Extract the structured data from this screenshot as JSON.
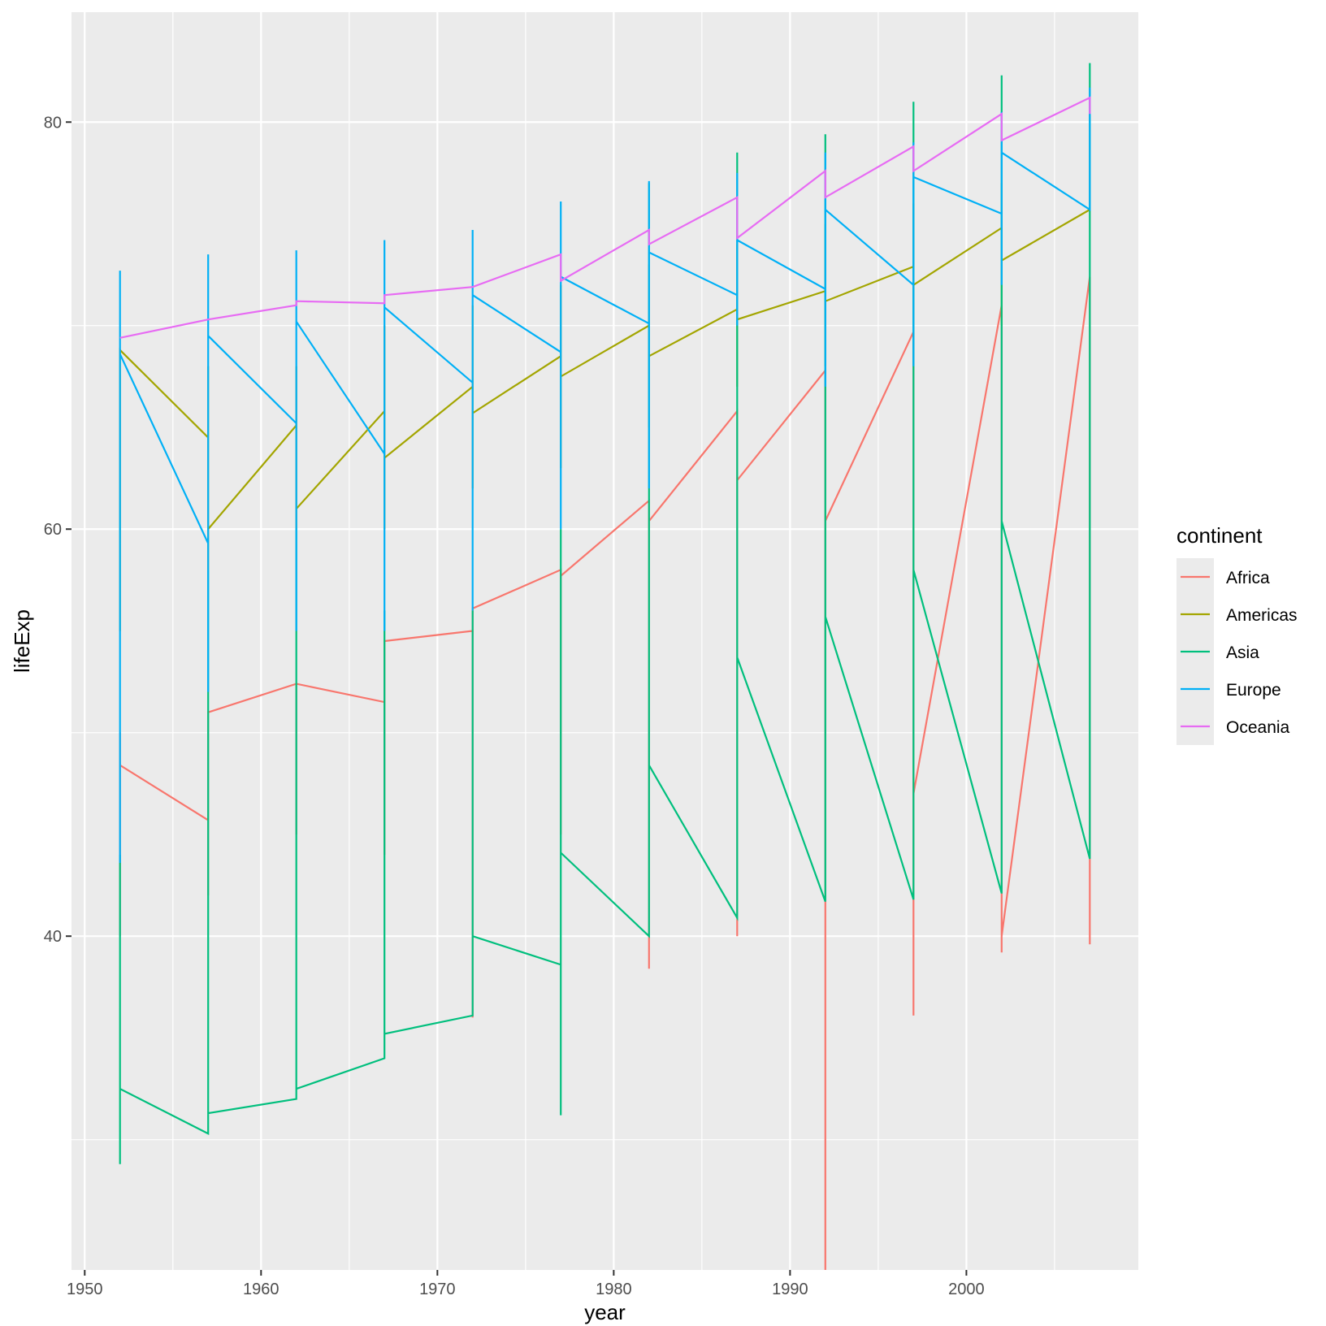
{
  "chart_data": {
    "type": "line",
    "title": "",
    "xlabel": "year",
    "ylabel": "lifeExp",
    "xlim": [
      1949.25,
      2009.75
    ],
    "ylim": [
      23.6,
      85.4
    ],
    "x_ticks": [
      1950,
      1960,
      1970,
      1980,
      1990,
      2000
    ],
    "x_tick_labels": [
      "1950",
      "1960",
      "1970",
      "1980",
      "1990",
      "2000"
    ],
    "y_ticks": [
      40,
      60,
      80
    ],
    "y_tick_labels": [
      "40",
      "60",
      "80"
    ],
    "grid": true,
    "legend": {
      "title": "continent",
      "position": "right"
    },
    "series": [
      {
        "name": "Africa",
        "color": "#F8766D",
        "points": [
          [
            1952,
            46
          ],
          [
            1952,
            40
          ],
          [
            1952,
            41
          ],
          [
            1952,
            50
          ],
          [
            1952,
            48.4
          ],
          [
            1957,
            45.7
          ],
          [
            1957,
            42
          ],
          [
            1957,
            45
          ],
          [
            1957,
            51
          ],
          [
            1962,
            52.4
          ],
          [
            1962,
            48.3
          ],
          [
            1962,
            45
          ],
          [
            1962,
            50
          ],
          [
            1962,
            52.4
          ],
          [
            1967,
            51.5
          ],
          [
            1967,
            44
          ],
          [
            1967,
            47
          ],
          [
            1967,
            54.5
          ],
          [
            1972,
            55
          ],
          [
            1972,
            36
          ],
          [
            1972,
            37
          ],
          [
            1972,
            50
          ],
          [
            1972,
            56.1
          ],
          [
            1977,
            58
          ],
          [
            1977,
            45
          ],
          [
            1977,
            50
          ],
          [
            1977,
            57.7
          ],
          [
            1982,
            61.4
          ],
          [
            1982,
            38.4
          ],
          [
            1982,
            45
          ],
          [
            1982,
            60.4
          ],
          [
            1987,
            65.8
          ],
          [
            1987,
            40
          ],
          [
            1987,
            45
          ],
          [
            1987,
            62.4
          ],
          [
            1992,
            67.8
          ],
          [
            1992,
            23.6
          ],
          [
            1992,
            40
          ],
          [
            1992,
            60.4
          ],
          [
            1997,
            69.7
          ],
          [
            1997,
            36.1
          ],
          [
            1997,
            40
          ],
          [
            1997,
            47
          ],
          [
            2002,
            71
          ],
          [
            2002,
            39.2
          ],
          [
            2002,
            40
          ],
          [
            2007,
            72.4
          ],
          [
            2007,
            39.6
          ],
          [
            2007,
            43
          ],
          [
            2007,
            62
          ]
        ]
      },
      {
        "name": "Americas",
        "color": "#A3A500",
        "points": [
          [
            1952,
            55
          ],
          [
            1952,
            68.8
          ],
          [
            1957,
            64.5
          ],
          [
            1957,
            58
          ],
          [
            1957,
            68
          ],
          [
            1957,
            60
          ],
          [
            1962,
            65.1
          ],
          [
            1962,
            60
          ],
          [
            1962,
            68
          ],
          [
            1962,
            61
          ],
          [
            1967,
            65.8
          ],
          [
            1967,
            60
          ],
          [
            1967,
            70
          ],
          [
            1967,
            63.5
          ],
          [
            1972,
            67
          ],
          [
            1972,
            62
          ],
          [
            1972,
            71
          ],
          [
            1972,
            65.7
          ],
          [
            1977,
            68.5
          ],
          [
            1977,
            63
          ],
          [
            1977,
            72
          ],
          [
            1977,
            67.5
          ],
          [
            1982,
            70
          ],
          [
            1982,
            65
          ],
          [
            1982,
            73
          ],
          [
            1982,
            68.5
          ],
          [
            1987,
            70.8
          ],
          [
            1987,
            67
          ],
          [
            1987,
            74
          ],
          [
            1987,
            70.3
          ],
          [
            1992,
            71.7
          ],
          [
            1992,
            68
          ],
          [
            1992,
            75
          ],
          [
            1992,
            71.2
          ],
          [
            1997,
            72.9
          ],
          [
            1997,
            68
          ],
          [
            1997,
            76
          ],
          [
            1997,
            72
          ],
          [
            2002,
            74.8
          ],
          [
            2002,
            70
          ],
          [
            2002,
            77
          ],
          [
            2002,
            73.2
          ],
          [
            2007,
            75.7
          ]
        ]
      },
      {
        "name": "Asia",
        "color": "#00BF7D",
        "points": [
          [
            1952,
            36.5
          ],
          [
            1952,
            28.8
          ],
          [
            1952,
            44
          ],
          [
            1952,
            32.5
          ],
          [
            1957,
            30.3
          ],
          [
            1957,
            58
          ],
          [
            1957,
            46
          ],
          [
            1957,
            31.3
          ],
          [
            1962,
            32
          ],
          [
            1962,
            60
          ],
          [
            1962,
            44
          ],
          [
            1962,
            32.5
          ],
          [
            1967,
            34
          ],
          [
            1967,
            56
          ],
          [
            1967,
            50
          ],
          [
            1967,
            35.2
          ],
          [
            1972,
            36.1
          ],
          [
            1972,
            56
          ],
          [
            1972,
            47
          ],
          [
            1972,
            40
          ],
          [
            1977,
            38.6
          ],
          [
            1977,
            60
          ],
          [
            1977,
            31.2
          ],
          [
            1977,
            44.1
          ],
          [
            1982,
            40
          ],
          [
            1982,
            77
          ],
          [
            1982,
            58
          ],
          [
            1982,
            48.4
          ],
          [
            1987,
            40.9
          ],
          [
            1987,
            78.5
          ],
          [
            1987,
            60
          ],
          [
            1987,
            53.7
          ],
          [
            1992,
            41.7
          ],
          [
            1992,
            79.4
          ],
          [
            1992,
            66
          ],
          [
            1992,
            55.7
          ],
          [
            1997,
            41.8
          ],
          [
            1997,
            81
          ],
          [
            1997,
            60
          ],
          [
            1997,
            58
          ],
          [
            2002,
            42.1
          ],
          [
            2002,
            82.3
          ],
          [
            2002,
            60
          ],
          [
            2002,
            60.4
          ],
          [
            2007,
            43.8
          ],
          [
            2007,
            82.9
          ],
          [
            2007,
            65
          ],
          [
            2007,
            70
          ]
        ]
      },
      {
        "name": "Europe",
        "color": "#00B0F6",
        "points": [
          [
            1952,
            43.6
          ],
          [
            1952,
            72.7
          ],
          [
            1952,
            68.6
          ],
          [
            1957,
            59.3
          ],
          [
            1957,
            73.5
          ],
          [
            1957,
            52
          ],
          [
            1957,
            69.5
          ],
          [
            1962,
            65.2
          ],
          [
            1962,
            73.7
          ],
          [
            1962,
            55
          ],
          [
            1962,
            70.2
          ],
          [
            1967,
            63.7
          ],
          [
            1967,
            74.2
          ],
          [
            1967,
            55
          ],
          [
            1967,
            70.9
          ],
          [
            1972,
            67.2
          ],
          [
            1972,
            74.7
          ],
          [
            1972,
            56
          ],
          [
            1972,
            71.5
          ],
          [
            1977,
            68.7
          ],
          [
            1977,
            76.1
          ],
          [
            1977,
            60
          ],
          [
            1977,
            72.4
          ],
          [
            1982,
            70.1
          ],
          [
            1982,
            77.1
          ],
          [
            1982,
            62
          ],
          [
            1982,
            73.6
          ],
          [
            1987,
            71.5
          ],
          [
            1987,
            77.5
          ],
          [
            1987,
            70
          ],
          [
            1987,
            74.2
          ],
          [
            1992,
            71.8
          ],
          [
            1992,
            78.5
          ],
          [
            1992,
            67
          ],
          [
            1992,
            75.7
          ],
          [
            1997,
            72
          ],
          [
            1997,
            79
          ],
          [
            1997,
            68
          ],
          [
            1997,
            77.3
          ],
          [
            2002,
            75.5
          ],
          [
            2002,
            80.5
          ],
          [
            2002,
            72
          ],
          [
            2002,
            78.5
          ],
          [
            2007,
            75.7
          ],
          [
            2007,
            81.7
          ]
        ]
      },
      {
        "name": "Oceania",
        "color": "#E76BF3",
        "points": [
          [
            1952,
            69.4
          ],
          [
            1957,
            70.3
          ],
          [
            1962,
            71
          ],
          [
            1962,
            71.2
          ],
          [
            1967,
            71.1
          ],
          [
            1967,
            71.5
          ],
          [
            1972,
            71.9
          ],
          [
            1977,
            73.5
          ],
          [
            1977,
            72.2
          ],
          [
            1982,
            74.7
          ],
          [
            1982,
            74
          ],
          [
            1987,
            76.3
          ],
          [
            1987,
            74.3
          ],
          [
            1992,
            77.6
          ],
          [
            1992,
            76.3
          ],
          [
            1997,
            78.8
          ],
          [
            1997,
            77.6
          ],
          [
            2002,
            80.4
          ],
          [
            2002,
            79.1
          ],
          [
            2007,
            81.2
          ],
          [
            2007,
            80.4
          ]
        ]
      }
    ]
  }
}
